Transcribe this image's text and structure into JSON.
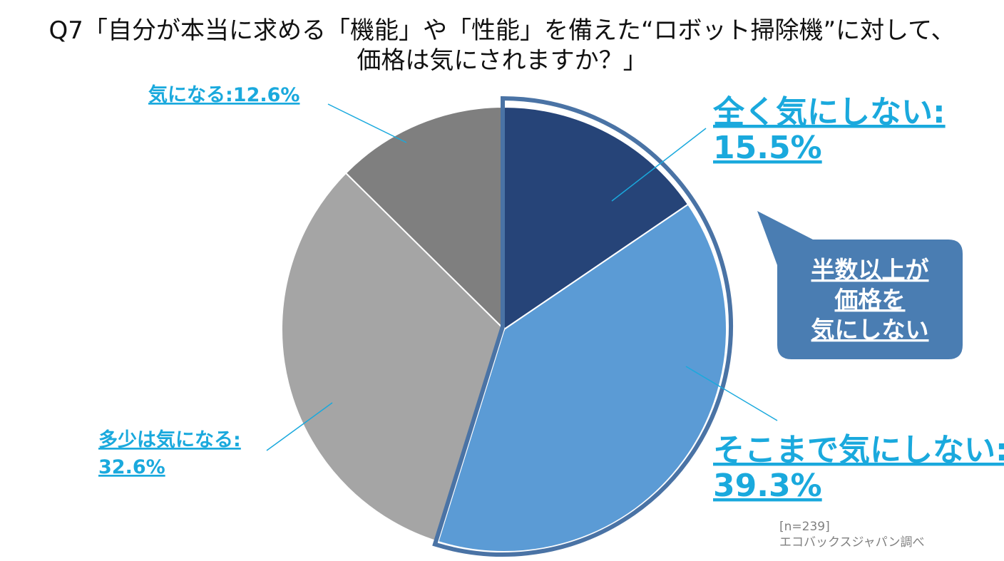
{
  "title": {
    "line1": "Q7「自分が本当に求める「機能」や「性能」を備えた“ロボット掃除機”に対して、",
    "line2": "価格は気にされますか？」"
  },
  "chart_data": {
    "type": "pie",
    "title": "Q7「自分が本当に求める「機能」や「性能」を備えた“ロボット掃除機”に対して、価格は気にされますか？」",
    "slices": [
      {
        "name": "全く気にしない",
        "value": 15.5,
        "percent_label": "15.5%",
        "color": "#264478",
        "highlighted": true
      },
      {
        "name": "そこまで気にしない",
        "value": 39.3,
        "percent_label": "39.3%",
        "color": "#5b9bd5",
        "highlighted": true
      },
      {
        "name": "多少は気になる",
        "value": 32.6,
        "percent_label": "32.6%",
        "color": "#a5a5a5",
        "highlighted": false
      },
      {
        "name": "気になる",
        "value": 12.6,
        "percent_label": "12.6%",
        "color": "#7f7f7f",
        "highlighted": false
      }
    ],
    "start_angle_deg": 0,
    "direction": "clockwise",
    "highlight_border_color": "#4a73a5",
    "leader_line_color": "#1aa9dd",
    "label_color": "#1aa9dd"
  },
  "labels": {
    "s0": {
      "line1": "全く気にしない:",
      "line2": "15.5%"
    },
    "s1": {
      "line1": "そこまで気にしない:",
      "line2": "39.3%"
    },
    "s2": {
      "line1": "多少は気になる:",
      "line2": "32.6%"
    },
    "s3": {
      "line1": "気になる:12.6%"
    }
  },
  "callout": {
    "lines": [
      "半数以上が",
      "価格を",
      "気にしない"
    ],
    "color": "#4a7db2"
  },
  "source": {
    "sample": "[n=239]",
    "org": "エコバックスジャパン調べ"
  }
}
